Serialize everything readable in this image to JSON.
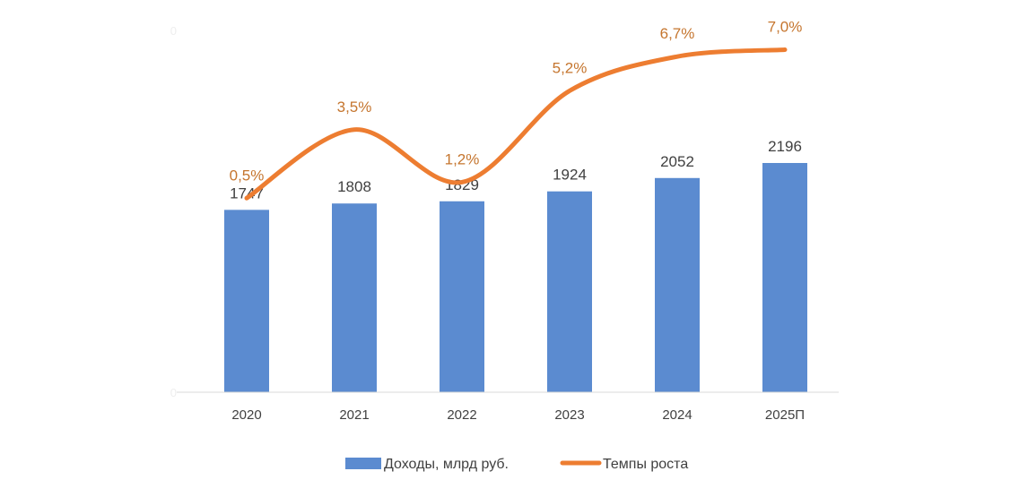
{
  "chart_data": {
    "type": "bar",
    "categories": [
      "2020",
      "2021",
      "2022",
      "2023",
      "2024",
      "2025П"
    ],
    "series": [
      {
        "name": "Доходы, млрд руб.",
        "type": "bar",
        "axis": "left",
        "values": [
          1747,
          1808,
          1829,
          1924,
          2052,
          2196
        ],
        "labels": [
          "1747",
          "1808",
          "1829",
          "1924",
          "2052",
          "2196"
        ],
        "color": "#5b8bd0"
      },
      {
        "name": "Темпы роста",
        "type": "line",
        "axis": "right",
        "unit": "%",
        "values": [
          0.5,
          3.5,
          1.2,
          5.2,
          6.7,
          7.0
        ],
        "labels": [
          "0,5%",
          "3,5%",
          "1,2%",
          "5,2%",
          "6,7%",
          "7,0%"
        ],
        "color": "#ed7d31"
      }
    ],
    "ylim": [
      0,
      3500
    ],
    "y_ticks": [
      "0",
      "",
      "",
      "",
      "",
      "",
      "",
      "0"
    ],
    "y2lim": [
      -8,
      8
    ],
    "grid": false,
    "legend_position": "bottom",
    "title": "",
    "xlabel": "",
    "ylabel": ""
  }
}
